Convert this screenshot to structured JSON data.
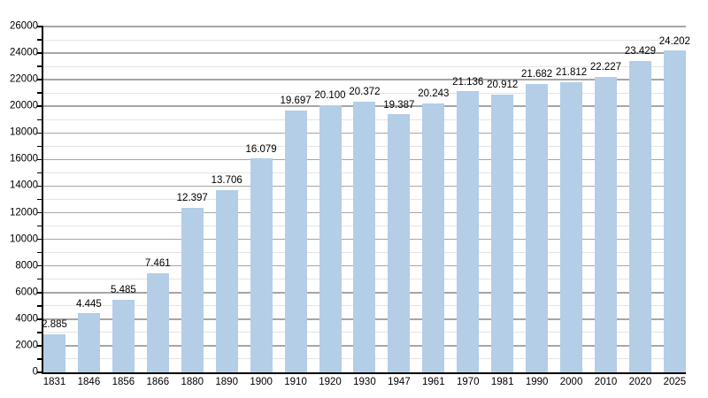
{
  "chart_data": {
    "type": "bar",
    "title": "",
    "xlabel": "",
    "ylabel": "",
    "categories": [
      "1831",
      "1846",
      "1856",
      "1866",
      "1880",
      "1890",
      "1900",
      "1910",
      "1920",
      "1930",
      "1947",
      "1961",
      "1970",
      "1981",
      "1990",
      "2000",
      "2010",
      "2020",
      "2025"
    ],
    "values": [
      2885,
      4445,
      5485,
      7461,
      12397,
      13706,
      16079,
      19697,
      20100,
      20372,
      19387,
      20243,
      21136,
      20912,
      21682,
      21812,
      22227,
      23429,
      24202
    ],
    "value_labels": [
      "2.885",
      "4.445",
      "5.485",
      "7.461",
      "12.397",
      "13.706",
      "16.079",
      "19.697",
      "20.100",
      "20.372",
      "19.387",
      "20.243",
      "21.136",
      "20.912",
      "21.682",
      "21.812",
      "22.227",
      "23.429",
      "24.202"
    ],
    "y_axis": {
      "min": 0,
      "max": 26000,
      "major_step": 2000,
      "minor_step": 1000,
      "tick_labels": [
        "0",
        "2000",
        "4000",
        "6000",
        "8000",
        "10000",
        "12000",
        "14000",
        "16000",
        "18000",
        "20000",
        "22000",
        "24000",
        "26000"
      ]
    },
    "grid": true,
    "legend": false,
    "colors": {
      "bar": "#b3cee6",
      "grid_major": "#a6a6a6",
      "grid_minor": "#e4e4e4",
      "axis": "#000000",
      "text": "#000000",
      "background": "#ffffff"
    }
  }
}
